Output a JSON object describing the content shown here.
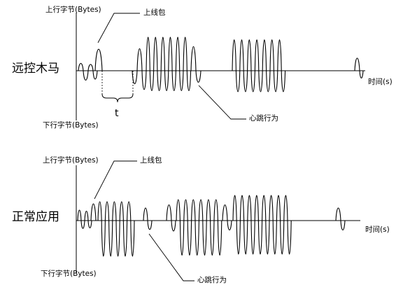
{
  "top": {
    "title": "远控木马",
    "upload_label": "上行字节(Bytes)",
    "download_label": "下行字节(Bytes)",
    "time_label": "时间(s)",
    "packet_annotation": "上线包",
    "heartbeat_annotation": "心跳行为",
    "interval_label": "t"
  },
  "bottom": {
    "title": "正常应用",
    "upload_label": "上行字节(Bytes)",
    "download_label": "下行字节(Bytes)",
    "time_label": "时间(s)",
    "packet_annotation": "上线包",
    "heartbeat_annotation": "心跳行为"
  }
}
